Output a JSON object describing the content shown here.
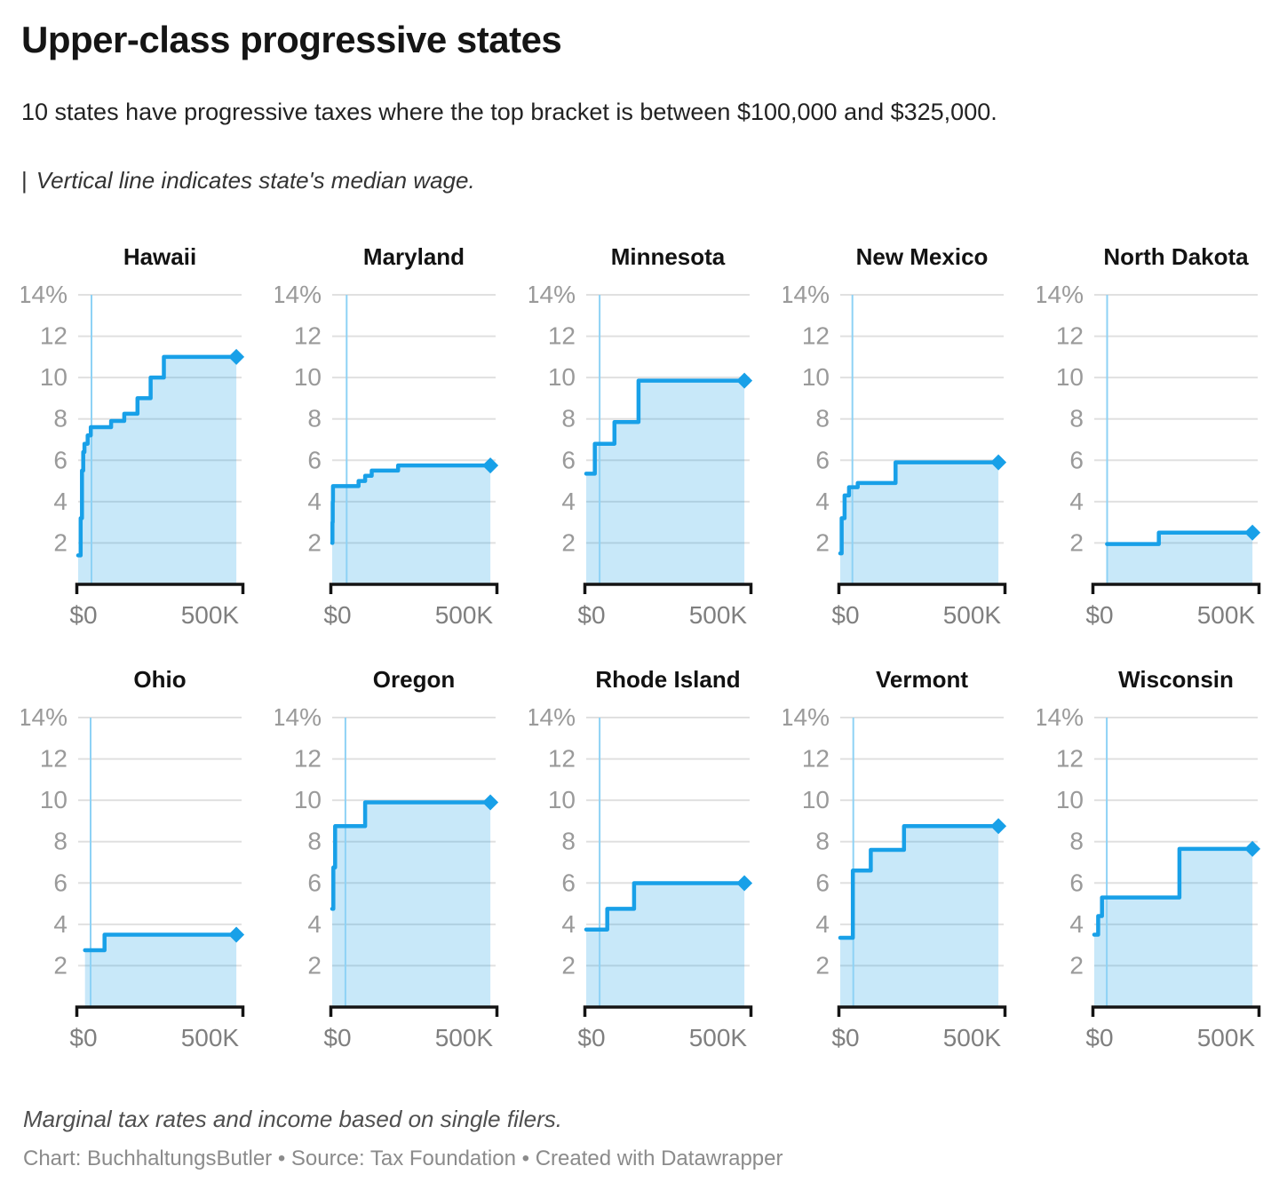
{
  "header": {
    "title": "Upper-class progressive states",
    "subtitle": "10 states have progressive taxes where the top bracket is between $100,000 and $325,000.",
    "legend_bar": "|",
    "legend_note": "Vertical line indicates state's median wage."
  },
  "footer": {
    "note": "Marginal tax rates and income based on single filers.",
    "credit": "Chart: BuchhaltungsButler • Source: Tax Foundation • Created with Datawrapper"
  },
  "colors": {
    "line": "#18a0e8",
    "fill_opacity": 0.24,
    "median_line": "#8ed2f5",
    "gridline": "#e0e0e0",
    "axis": "#141414",
    "y_tick_label": "#9a9a9a",
    "x_tick_label": "#7f7f7f",
    "chart_title": "#121212"
  },
  "chart_data": {
    "type": "line",
    "subtype": "step-line small multiples, area fill below, diamond marker at top bracket",
    "layout": "2 rows x 5 columns, shared axes",
    "x_axis": {
      "xlim": [
        0,
        620000
      ],
      "data_end": 600000,
      "ticks": [
        {
          "value": 0,
          "label": "$0"
        },
        {
          "value": 500000,
          "label": "500K"
        }
      ]
    },
    "y_axis": {
      "ylim": [
        0,
        14
      ],
      "ticks": [
        2,
        4,
        6,
        8,
        10,
        12,
        14
      ],
      "top_label": "14%",
      "unit": "% marginal tax rate"
    },
    "median_wage_line": "thin vertical light-blue line per panel",
    "series": [
      {
        "state": "Hawaii",
        "median_wage": 50510,
        "steps": [
          [
            0,
            1.4
          ],
          [
            9600,
            3.2
          ],
          [
            14400,
            5.5
          ],
          [
            19200,
            6.4
          ],
          [
            24000,
            6.8
          ],
          [
            36000,
            7.2
          ],
          [
            48000,
            7.6
          ],
          [
            125000,
            7.9
          ],
          [
            175000,
            8.25
          ],
          [
            225000,
            9.0
          ],
          [
            275000,
            10.0
          ],
          [
            325000,
            11.0
          ]
        ]
      },
      {
        "state": "Maryland",
        "median_wage": 55060,
        "steps": [
          [
            0,
            2.0
          ],
          [
            1000,
            3.0
          ],
          [
            2000,
            4.0
          ],
          [
            3000,
            4.75
          ],
          [
            100000,
            5.0
          ],
          [
            125000,
            5.25
          ],
          [
            150000,
            5.5
          ],
          [
            250000,
            5.75
          ]
        ]
      },
      {
        "state": "Minnesota",
        "median_wage": 50880,
        "steps": [
          [
            0,
            5.35
          ],
          [
            32570,
            6.8
          ],
          [
            106990,
            7.85
          ],
          [
            198630,
            9.85
          ]
        ]
      },
      {
        "state": "New Mexico",
        "median_wage": 46000,
        "steps": [
          [
            0,
            1.5
          ],
          [
            5500,
            3.2
          ],
          [
            16500,
            4.3
          ],
          [
            33500,
            4.7
          ],
          [
            66500,
            4.9
          ],
          [
            210000,
            5.9
          ]
        ]
      },
      {
        "state": "North Dakota",
        "median_wage": 48830,
        "steps": [
          [
            48475,
            1.95
          ],
          [
            244825,
            2.5
          ]
        ]
      },
      {
        "state": "Ohio",
        "median_wage": 47110,
        "steps": [
          [
            26050,
            2.75
          ],
          [
            100000,
            3.5
          ]
        ]
      },
      {
        "state": "Oregon",
        "median_wage": 50160,
        "steps": [
          [
            0,
            4.75
          ],
          [
            4400,
            6.75
          ],
          [
            11050,
            8.75
          ],
          [
            125000,
            9.9
          ]
        ]
      },
      {
        "state": "Rhode Island",
        "median_wage": 50970,
        "steps": [
          [
            0,
            3.75
          ],
          [
            79900,
            4.75
          ],
          [
            181650,
            5.99
          ]
        ]
      },
      {
        "state": "Vermont",
        "median_wage": 49630,
        "steps": [
          [
            0,
            3.35
          ],
          [
            47900,
            6.6
          ],
          [
            116000,
            7.6
          ],
          [
            242000,
            8.75
          ]
        ]
      },
      {
        "state": "Wisconsin",
        "median_wage": 47590,
        "steps": [
          [
            0,
            3.5
          ],
          [
            14680,
            4.4
          ],
          [
            29370,
            5.3
          ],
          [
            323290,
            7.65
          ]
        ]
      }
    ]
  }
}
